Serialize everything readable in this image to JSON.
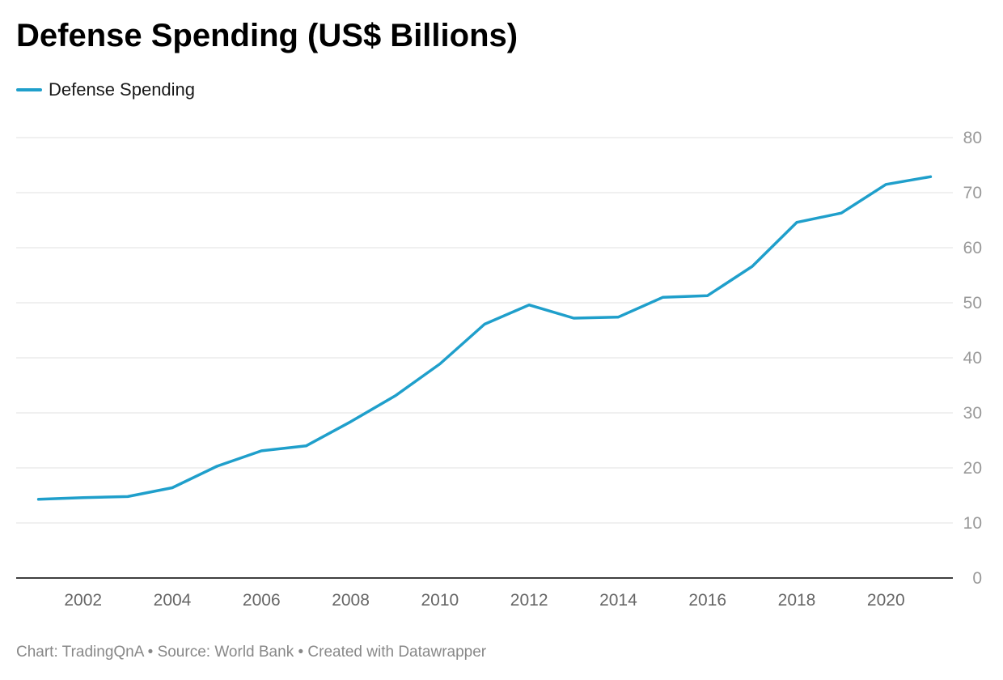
{
  "chart_data": {
    "type": "line",
    "title": "Defense Spending (US$ Billions)",
    "xlabel": "",
    "ylabel": "",
    "x": [
      2001,
      2002,
      2003,
      2004,
      2005,
      2006,
      2007,
      2008,
      2009,
      2010,
      2011,
      2012,
      2013,
      2014,
      2015,
      2016,
      2017,
      2018,
      2019,
      2020,
      2021
    ],
    "series": [
      {
        "name": "Defense Spending",
        "color": "#1f9fcb",
        "values": [
          14.3,
          14.6,
          14.8,
          16.4,
          20.3,
          23.1,
          24.0,
          28.4,
          33.1,
          38.9,
          46.1,
          49.6,
          47.2,
          47.4,
          51.0,
          51.3,
          56.6,
          64.6,
          66.3,
          71.5,
          72.9
        ]
      }
    ],
    "xticks": [
      2002,
      2004,
      2006,
      2008,
      2010,
      2012,
      2014,
      2016,
      2018,
      2020
    ],
    "yticks": [
      0,
      10,
      20,
      30,
      40,
      50,
      60,
      70,
      80
    ],
    "xlim": [
      2001,
      2021
    ],
    "ylim": [
      0,
      80
    ],
    "grid": true,
    "legend_position": "top-left",
    "y_axis_side": "right"
  },
  "footer": "Chart: TradingQnA • Source: World Bank • Created with Datawrapper"
}
